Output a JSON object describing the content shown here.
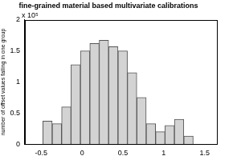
{
  "chart_data": {
    "type": "histogram",
    "title": "fine-grained material based multivariate calibrations",
    "ylabel": "number of offset values falling in one group",
    "annotation": "x 10⁵",
    "bins": [
      -0.48,
      -0.365,
      -0.25,
      -0.135,
      -0.02,
      0.095,
      0.21,
      0.325,
      0.44,
      0.555,
      0.67,
      0.785,
      0.9,
      1.015,
      1.13,
      1.245,
      1.36
    ],
    "values": [
      0.37,
      0.33,
      0.6,
      1.28,
      1.5,
      1.62,
      1.67,
      1.57,
      1.5,
      1.15,
      0.75,
      0.33,
      0.2,
      0.3,
      0.4,
      0.13
    ],
    "color": "#d3d3d3",
    "xlim": [
      -0.7,
      1.65
    ],
    "xticks": [
      -0.5,
      0,
      0.5,
      1,
      1.5
    ],
    "ylim": [
      0,
      2
    ],
    "yticks": [
      0,
      0.5,
      1,
      1.5,
      2
    ],
    "grid": false
  }
}
